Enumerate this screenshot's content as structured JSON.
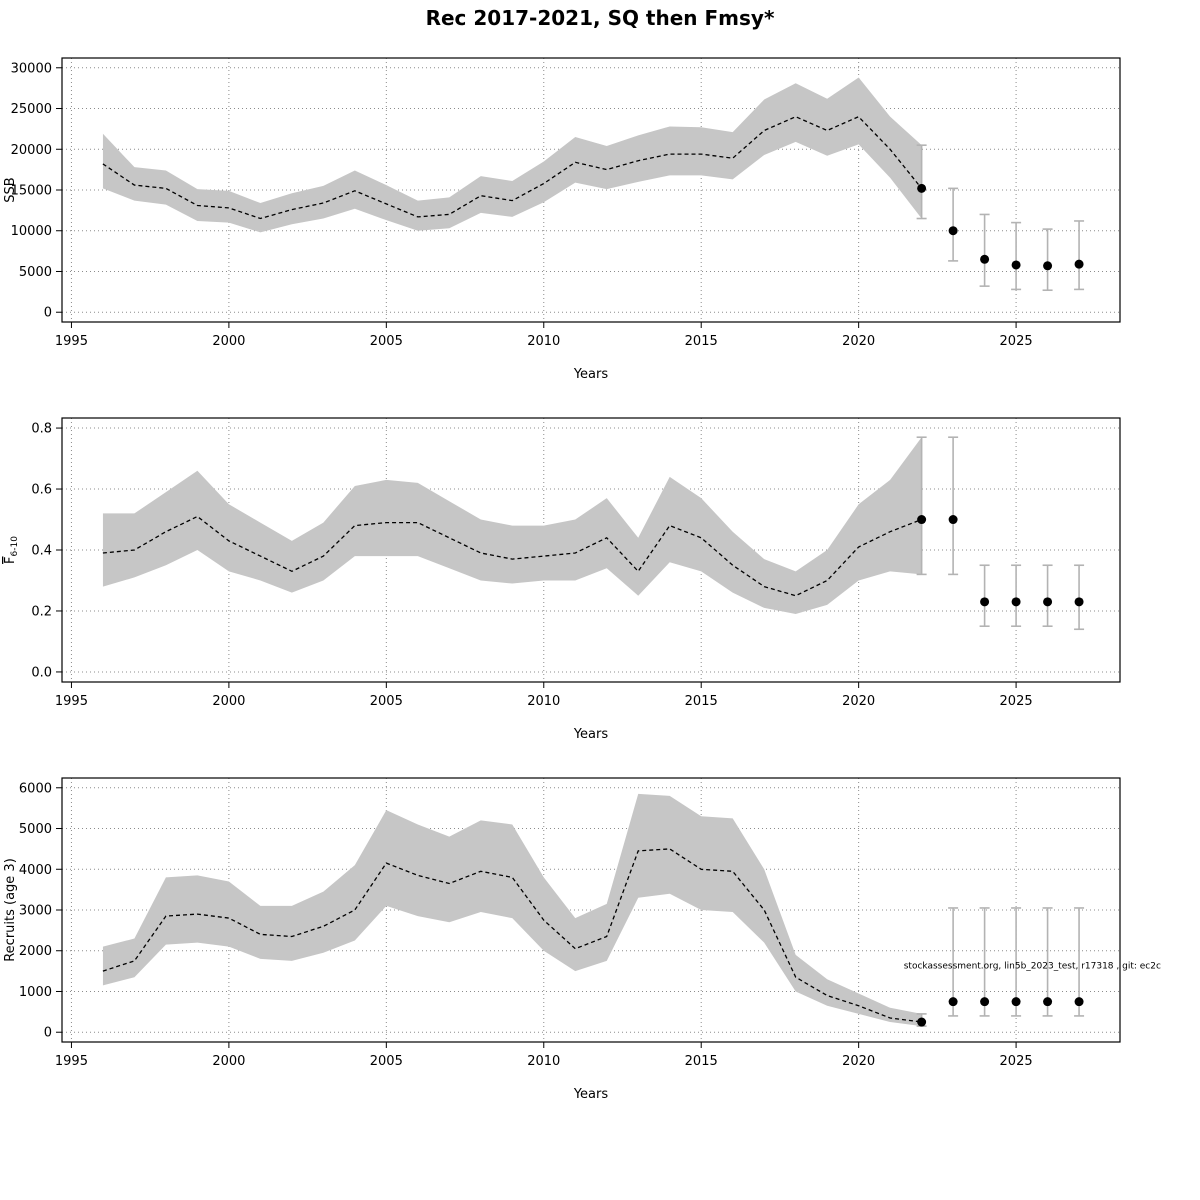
{
  "title": "Rec 2017-2021, SQ then Fmsy*",
  "colors": {
    "band": "#c6c6c6",
    "line": "#000000",
    "errorbar": "#b3b3b3",
    "point": "#000000",
    "grid": "#8c8c8c",
    "box": "#000000"
  },
  "chart_data": [
    {
      "type": "area",
      "panel": "ssb",
      "xlabel": "Years",
      "ylabel": "SSB",
      "xlim": [
        1994.7,
        2028.3
      ],
      "ylim": [
        -1200,
        31200
      ],
      "xticks": [
        1995,
        2000,
        2005,
        2010,
        2015,
        2020,
        2025
      ],
      "yticks": [
        0,
        5000,
        10000,
        15000,
        20000,
        25000,
        30000
      ],
      "years": [
        1996,
        1997,
        1998,
        1999,
        2000,
        2001,
        2002,
        2003,
        2004,
        2005,
        2006,
        2007,
        2008,
        2009,
        2010,
        2011,
        2012,
        2013,
        2014,
        2015,
        2016,
        2017,
        2018,
        2019,
        2020,
        2021,
        2022
      ],
      "estimate": [
        18200,
        15600,
        15200,
        13100,
        12800,
        11500,
        12600,
        13400,
        14900,
        13300,
        11700,
        12000,
        14300,
        13700,
        15800,
        18400,
        17500,
        18600,
        19400,
        19400,
        18900,
        22300,
        24000,
        22300,
        24000,
        20000,
        15200
      ],
      "ci_low": [
        15200,
        13700,
        13200,
        11200,
        11000,
        9800,
        10800,
        11500,
        12700,
        11300,
        10000,
        10300,
        12200,
        11700,
        13500,
        15900,
        15100,
        16000,
        16800,
        16800,
        16300,
        19300,
        20900,
        19200,
        20600,
        16500,
        11500
      ],
      "ci_high": [
        21900,
        17800,
        17400,
        15100,
        14900,
        13400,
        14600,
        15500,
        17400,
        15600,
        13700,
        14100,
        16700,
        16100,
        18500,
        21500,
        20400,
        21700,
        22800,
        22700,
        22100,
        26100,
        28100,
        26200,
        28800,
        24000,
        20500
      ],
      "forecast": {
        "years": [
          2022,
          2023,
          2024,
          2025,
          2026,
          2027
        ],
        "values": [
          15200,
          10000,
          6500,
          5800,
          5700,
          5900
        ],
        "low": [
          11500,
          6300,
          3200,
          2800,
          2700,
          2800
        ],
        "high": [
          20500,
          15200,
          12000,
          11000,
          10200,
          11200
        ]
      }
    },
    {
      "type": "area",
      "panel": "fishing-mortality",
      "xlabel": "Years",
      "ylabel": "F",
      "ylabel_sub": "6-10",
      "ylabel_overline": true,
      "xlim": [
        1994.7,
        2028.3
      ],
      "ylim": [
        -0.033,
        0.833
      ],
      "xticks": [
        1995,
        2000,
        2005,
        2010,
        2015,
        2020,
        2025
      ],
      "yticks": [
        0.0,
        0.2,
        0.4,
        0.6,
        0.8
      ],
      "ytick_labels": [
        "0.0",
        "0.2",
        "0.4",
        "0.6",
        "0.8"
      ],
      "years": [
        1996,
        1997,
        1998,
        1999,
        2000,
        2001,
        2002,
        2003,
        2004,
        2005,
        2006,
        2007,
        2008,
        2009,
        2010,
        2011,
        2012,
        2013,
        2014,
        2015,
        2016,
        2017,
        2018,
        2019,
        2020,
        2021,
        2022
      ],
      "estimate": [
        0.39,
        0.4,
        0.46,
        0.51,
        0.43,
        0.38,
        0.33,
        0.38,
        0.48,
        0.49,
        0.49,
        0.44,
        0.39,
        0.37,
        0.38,
        0.39,
        0.44,
        0.33,
        0.48,
        0.44,
        0.35,
        0.28,
        0.25,
        0.3,
        0.41,
        0.46,
        0.5
      ],
      "ci_low": [
        0.28,
        0.31,
        0.35,
        0.4,
        0.33,
        0.3,
        0.26,
        0.3,
        0.38,
        0.38,
        0.38,
        0.34,
        0.3,
        0.29,
        0.3,
        0.3,
        0.34,
        0.25,
        0.36,
        0.33,
        0.26,
        0.21,
        0.19,
        0.22,
        0.3,
        0.33,
        0.32
      ],
      "ci_high": [
        0.52,
        0.52,
        0.59,
        0.66,
        0.55,
        0.49,
        0.43,
        0.49,
        0.61,
        0.63,
        0.62,
        0.56,
        0.5,
        0.48,
        0.48,
        0.5,
        0.57,
        0.44,
        0.64,
        0.57,
        0.46,
        0.37,
        0.33,
        0.4,
        0.55,
        0.63,
        0.77
      ],
      "forecast": {
        "years": [
          2022,
          2023,
          2024,
          2025,
          2026,
          2027
        ],
        "values": [
          0.5,
          0.5,
          0.23,
          0.23,
          0.23,
          0.23
        ],
        "low": [
          0.32,
          0.32,
          0.15,
          0.15,
          0.15,
          0.14
        ],
        "high": [
          0.77,
          0.77,
          0.35,
          0.35,
          0.35,
          0.35
        ]
      }
    },
    {
      "type": "area",
      "panel": "recruits",
      "xlabel": "Years",
      "ylabel": "Recruits (age 3)",
      "xlim": [
        1994.7,
        2028.3
      ],
      "ylim": [
        -240,
        6240
      ],
      "xticks": [
        1995,
        2000,
        2005,
        2010,
        2015,
        2020,
        2025
      ],
      "yticks": [
        0,
        1000,
        2000,
        3000,
        4000,
        5000,
        6000
      ],
      "years": [
        1996,
        1997,
        1998,
        1999,
        2000,
        2001,
        2002,
        2003,
        2004,
        2005,
        2006,
        2007,
        2008,
        2009,
        2010,
        2011,
        2012,
        2013,
        2014,
        2015,
        2016,
        2017,
        2018,
        2019,
        2020,
        2021,
        2022
      ],
      "estimate": [
        1500,
        1750,
        2850,
        2900,
        2800,
        2400,
        2350,
        2600,
        3000,
        4150,
        3850,
        3650,
        3950,
        3800,
        2750,
        2050,
        2350,
        4450,
        4500,
        4000,
        3950,
        3000,
        1350,
        900,
        650,
        350,
        250
      ],
      "ci_low": [
        1150,
        1350,
        2150,
        2200,
        2100,
        1800,
        1750,
        1950,
        2250,
        3100,
        2850,
        2700,
        2950,
        2800,
        2000,
        1500,
        1750,
        3300,
        3400,
        3000,
        2950,
        2200,
        1000,
        650,
        450,
        250,
        150
      ],
      "ci_high": [
        2100,
        2300,
        3800,
        3850,
        3700,
        3100,
        3100,
        3450,
        4100,
        5450,
        5100,
        4800,
        5200,
        5100,
        3800,
        2800,
        3150,
        5850,
        5800,
        5300,
        5250,
        4000,
        1900,
        1300,
        950,
        600,
        450
      ],
      "forecast": {
        "years": [
          2022,
          2023,
          2024,
          2025,
          2026,
          2027
        ],
        "values": [
          250,
          750,
          750,
          750,
          750,
          750
        ],
        "low": [
          150,
          400,
          400,
          400,
          400,
          400
        ],
        "high": [
          450,
          3050,
          3050,
          3050,
          3050,
          3050
        ]
      },
      "annotation": {
        "text": "stockassessment.org, lin5b_2023_test, r17318 , git: ec2c",
        "x": 2029.6,
        "y": 1570,
        "anchor": "end",
        "font_size": 9
      }
    }
  ]
}
